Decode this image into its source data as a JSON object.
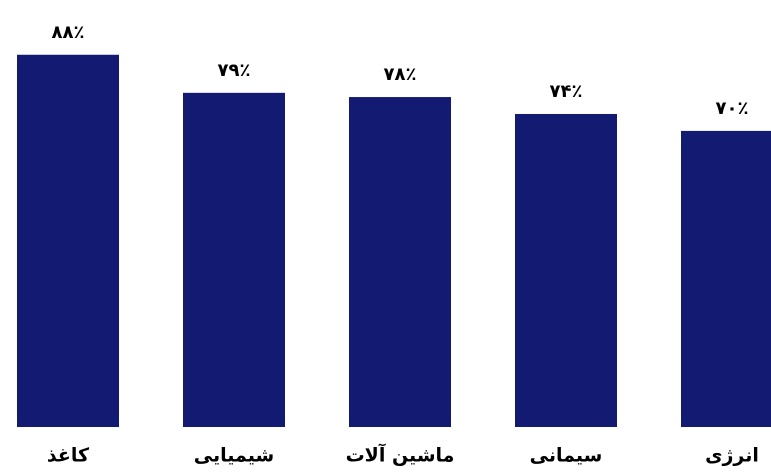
{
  "chart_data": {
    "type": "bar",
    "categories": [
      "کاغذ",
      "شیمیایی",
      "ماشین آلات",
      "سیمانی",
      "انرژی"
    ],
    "values": [
      88,
      79,
      78,
      74,
      70
    ],
    "value_labels": [
      "۸۸٪",
      "۷۹٪",
      "۷۸٪",
      "۷۴٪",
      "۷۰٪"
    ],
    "color": "#131a72"
  }
}
